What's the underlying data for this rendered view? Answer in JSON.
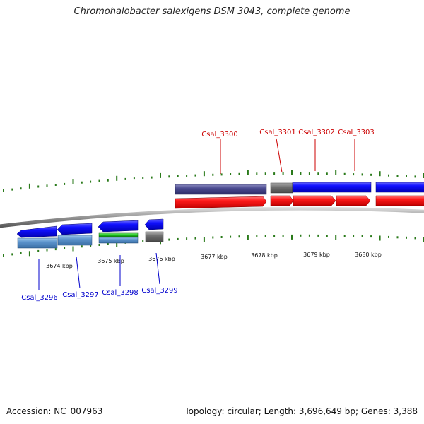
{
  "title": "Chromohalobacter salexigens DSM 3043, complete genome",
  "footer": {
    "accession": "Accession: NC_007963",
    "summary": "Topology: circular; Length: 3,696,649 bp; Genes: 3,388"
  },
  "scale_labels": [
    "3674 kbp",
    "3675 kbp",
    "3676 kbp",
    "3677 kbp",
    "3678 kbp",
    "3679 kbp",
    "3680 kbp"
  ],
  "forward_genes": [
    "Csal_3300",
    "Csal_3301",
    "Csal_3302",
    "Csal_3303"
  ],
  "reverse_genes": [
    "Csal_3296",
    "Csal_3297",
    "Csal_3298",
    "Csal_3299"
  ],
  "colors": {
    "forward_strand": "#ff0000",
    "reverse_strand": "#0000ff",
    "tick": "#2a7a1a",
    "backbone": "#888888"
  }
}
